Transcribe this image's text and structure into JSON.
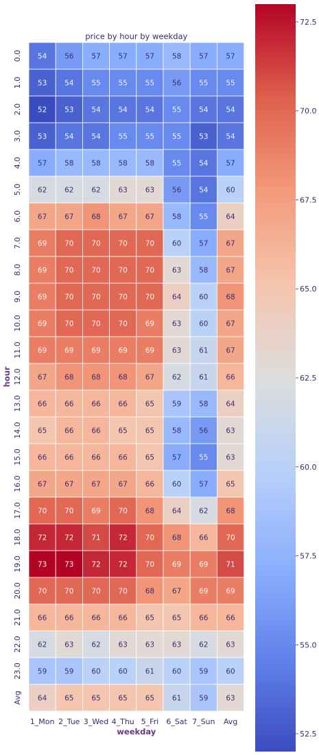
{
  "chart_data": {
    "type": "heatmap",
    "title": "price by hour by weekday",
    "xlabel": "weekday",
    "ylabel": "hour",
    "x_categories": [
      "1_Mon",
      "2_Tue",
      "3_Wed",
      "4_Thu",
      "5_Fri",
      "6_Sat",
      "7_Sun",
      "Avg"
    ],
    "y_categories": [
      "0.0",
      "1.0",
      "2.0",
      "3.0",
      "4.0",
      "5.0",
      "6.0",
      "7.0",
      "8.0",
      "9.0",
      "10.0",
      "11.0",
      "12.0",
      "13.0",
      "14.0",
      "15.0",
      "16.0",
      "17.0",
      "18.0",
      "19.0",
      "20.0",
      "21.0",
      "22.0",
      "23.0",
      "Avg"
    ],
    "values": [
      [
        54,
        56,
        57,
        57,
        57,
        58,
        57,
        57
      ],
      [
        53,
        54,
        55,
        55,
        55,
        56,
        55,
        55
      ],
      [
        52,
        53,
        54,
        54,
        54,
        55,
        54,
        54
      ],
      [
        53,
        54,
        54,
        55,
        55,
        55,
        53,
        54
      ],
      [
        57,
        58,
        58,
        58,
        58,
        55,
        54,
        57
      ],
      [
        62,
        62,
        62,
        63,
        63,
        56,
        54,
        60
      ],
      [
        67,
        67,
        68,
        67,
        67,
        58,
        55,
        64
      ],
      [
        69,
        70,
        70,
        70,
        70,
        60,
        57,
        67
      ],
      [
        69,
        70,
        70,
        70,
        70,
        63,
        58,
        67
      ],
      [
        69,
        70,
        70,
        70,
        70,
        64,
        60,
        68
      ],
      [
        69,
        70,
        70,
        70,
        69,
        63,
        60,
        67
      ],
      [
        69,
        69,
        69,
        69,
        69,
        63,
        61,
        67
      ],
      [
        67,
        68,
        68,
        68,
        67,
        62,
        61,
        66
      ],
      [
        66,
        66,
        66,
        66,
        65,
        59,
        58,
        64
      ],
      [
        65,
        66,
        66,
        65,
        65,
        58,
        56,
        63
      ],
      [
        66,
        66,
        66,
        66,
        65,
        57,
        55,
        63
      ],
      [
        67,
        67,
        67,
        67,
        66,
        60,
        57,
        65
      ],
      [
        70,
        70,
        69,
        70,
        68,
        64,
        62,
        68
      ],
      [
        72,
        72,
        71,
        72,
        70,
        68,
        66,
        70
      ],
      [
        73,
        73,
        72,
        72,
        70,
        69,
        69,
        71
      ],
      [
        70,
        70,
        70,
        70,
        68,
        67,
        69,
        69
      ],
      [
        66,
        66,
        66,
        66,
        65,
        65,
        66,
        66
      ],
      [
        62,
        63,
        62,
        63,
        63,
        63,
        62,
        63
      ],
      [
        59,
        59,
        60,
        60,
        61,
        60,
        59,
        60
      ],
      [
        64,
        65,
        65,
        65,
        65,
        61,
        59,
        63
      ]
    ],
    "vmin": 52.0,
    "vmax": 73.0,
    "colormap": "coolwarm",
    "colorbar_ticks": [
      "52.5",
      "55.0",
      "57.5",
      "60.0",
      "62.5",
      "65.0",
      "67.5",
      "70.0",
      "72.5"
    ],
    "annotations": "cell values shown"
  }
}
